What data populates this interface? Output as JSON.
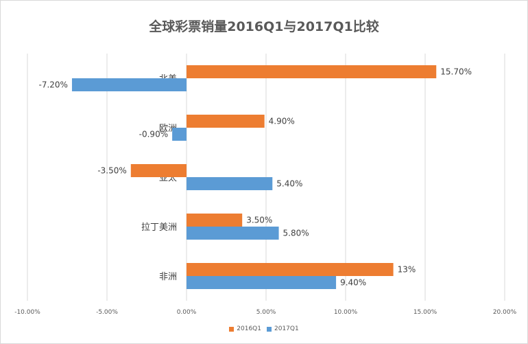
{
  "chart_data": {
    "type": "bar",
    "orientation": "horizontal",
    "title": "全球彩票销量2016Q1与2017Q1比较",
    "categories": [
      "北美",
      "欧洲",
      "亚太",
      "拉丁美洲",
      "非洲"
    ],
    "series": [
      {
        "name": "2016Q1",
        "color": "#ED7D31",
        "values": [
          15.7,
          4.9,
          -3.5,
          3.5,
          13
        ],
        "labels": [
          "15.70%",
          "4.90%",
          "-3.50%",
          "3.50%",
          "13%"
        ]
      },
      {
        "name": "2017Q1",
        "color": "#5B9BD5",
        "values": [
          -7.2,
          -0.9,
          5.4,
          5.8,
          9.4
        ],
        "labels": [
          "-7.20%",
          "-0.90%",
          "5.40%",
          "5.80%",
          "9.40%"
        ]
      }
    ],
    "xlim": [
      -10,
      20
    ],
    "xticks": [
      -10,
      -5,
      0,
      5,
      10,
      15,
      20
    ],
    "xtick_labels": [
      "-10.00%",
      "-5.00%",
      "0.00%",
      "5.00%",
      "10.00%",
      "15.00%",
      "20.00%"
    ],
    "grid": "vertical",
    "legend_position": "bottom"
  }
}
